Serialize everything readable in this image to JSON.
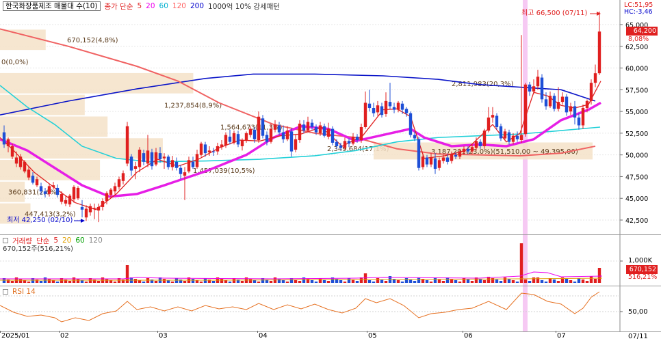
{
  "top_right": {
    "lc_label": "LC:51,95",
    "hc_label": "HC:-3,46"
  },
  "price_legend": {
    "stock_name": "한국화장품제조 매물대 수(10)",
    "indicator_label": "종가 단순",
    "ma_periods": [
      "5",
      "20",
      "60",
      "120",
      "200"
    ],
    "ma_colors": [
      "#e02020",
      "#ee00ee",
      "#00b0d0",
      "#ff6060",
      "#0000cc"
    ],
    "extra_label": "1000억 10% 강세패턴"
  },
  "volume_legend": {
    "label": "거래량",
    "indicator_label": "단순",
    "ma_periods": [
      "5",
      "20",
      "60",
      "120"
    ],
    "ma_colors": [
      "#e02020",
      "#e0a000",
      "#00a000",
      "#888888"
    ],
    "current_volume": "670,152주(516,21%)"
  },
  "rsi_legend": {
    "label": "RSI 14"
  },
  "price_axis": [
    {
      "label": "65,000",
      "value": 65000
    },
    {
      "label": "62,500",
      "value": 62500
    },
    {
      "label": "60,000",
      "value": 60000
    },
    {
      "label": "57,500",
      "value": 57500
    },
    {
      "label": "55,000",
      "value": 55000
    },
    {
      "label": "52,500",
      "value": 52500
    },
    {
      "label": "50,000",
      "value": 50000
    },
    {
      "label": "47,500",
      "value": 47500
    },
    {
      "label": "45,000",
      "value": 45000
    },
    {
      "label": "42,500",
      "value": 42500
    }
  ],
  "current_price": {
    "price": "64,200",
    "change_pct": "8,08%"
  },
  "high_annotation": "최고 66,500 (07/11)",
  "low_annotation": "최저 42,250 (02/10)",
  "volume_axis": {
    "label": "1,000K",
    "current_volume": "670,152",
    "current_pct": "516,21%"
  },
  "rsi_axis": {
    "label": "50,00"
  },
  "x_axis": [
    {
      "label": "2025/01",
      "date": "2025-01-01"
    },
    {
      "label": "02",
      "date": "2025-02-01"
    },
    {
      "label": "03",
      "date": "2025-03-01"
    },
    {
      "label": "04",
      "date": "2025-04-01"
    },
    {
      "label": "05",
      "date": "2025-05-01"
    },
    {
      "label": "06",
      "date": "2025-06-01"
    },
    {
      "label": "07",
      "date": "2025-07-01"
    }
  ],
  "x_axis_last_label": "07/11",
  "volume_profile": [
    {
      "label": "670,152(4,8%)",
      "volume_pct": 4.8,
      "price_low": 62000,
      "price_high": 64500
    },
    {
      "label": "0(0,0%)",
      "volume_pct": 0.0,
      "price_low": 59500,
      "price_high": 62000
    },
    {
      "label": "2,811,983(20,3%)",
      "volume_pct": 20.3,
      "price_low": 57000,
      "price_high": 59500
    },
    {
      "label": "1,237,854(8,9%)",
      "volume_pct": 8.9,
      "price_low": 54500,
      "price_high": 57000
    },
    {
      "label": "1,564,673(11,3%)",
      "volume_pct": 11.3,
      "price_low": 52000,
      "price_high": 54500
    },
    {
      "label": "2,349,684(17,1%)",
      "volume_pct": 17.1,
      "price_low": 49500,
      "price_high": 52000
    },
    {
      "label": "3,187,291(23,0%)(51,510,00 ~ 49,395,00)",
      "volume_pct": 23.0,
      "price_low": 49395,
      "price_high": 51510
    },
    {
      "label": "1,457,039(10,5%)",
      "volume_pct": 10.5,
      "price_low": 47000,
      "price_high": 49500
    },
    {
      "label": "360,831(2,6%)",
      "volume_pct": 2.6,
      "price_low": 44500,
      "price_high": 47000
    },
    {
      "label": "447,413(3,2%)",
      "volume_pct": 3.2,
      "price_low": 42000,
      "price_high": 44500
    }
  ]
}
